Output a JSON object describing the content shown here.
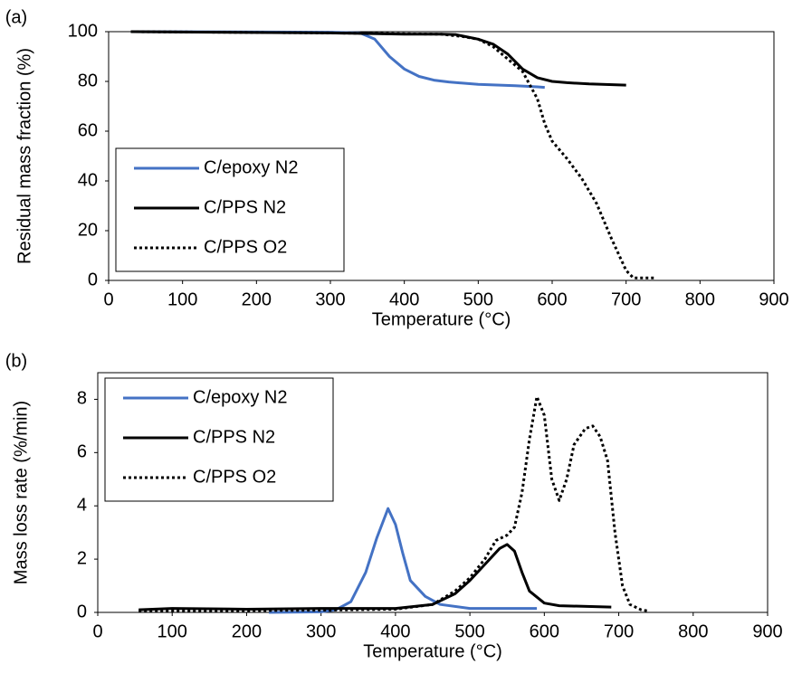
{
  "chart_data": [
    {
      "type": "line",
      "label": "(a)",
      "y_label": "Residual mass fraction (%)",
      "x_label": "Temperature (°C)",
      "xlim": [
        0,
        900
      ],
      "xticks": [
        0,
        100,
        200,
        300,
        400,
        500,
        600,
        700,
        800,
        900
      ],
      "ylim": [
        0,
        100
      ],
      "yticks": [
        0,
        20,
        40,
        60,
        80,
        100
      ],
      "grid": false,
      "legend": "lower left",
      "series": [
        {
          "name": "C/epoxy N2",
          "color": "#4472c4",
          "line_style": "solid",
          "x": [
            30,
            300,
            340,
            360,
            380,
            400,
            420,
            440,
            460,
            500,
            550,
            580,
            590
          ],
          "values": [
            100,
            99.8,
            99.5,
            97,
            90,
            85,
            82,
            80.5,
            79.8,
            78.8,
            78.3,
            77.8,
            77.6
          ]
        },
        {
          "name": "C/PPS N2",
          "color": "#000000",
          "line_style": "solid",
          "x": [
            30,
            300,
            400,
            450,
            470,
            500,
            520,
            540,
            560,
            580,
            600,
            620,
            650,
            700
          ],
          "values": [
            100,
            99.5,
            99,
            99,
            98.8,
            97,
            95,
            91,
            85,
            81.5,
            80,
            79.5,
            79,
            78.5
          ]
        },
        {
          "name": "C/PPS O2",
          "color": "#000000",
          "line_style": "dotted",
          "x": [
            30,
            300,
            450,
            480,
            500,
            520,
            540,
            560,
            580,
            590,
            600,
            620,
            640,
            660,
            680,
            700,
            710,
            740
          ],
          "values": [
            100,
            99.5,
            99,
            98,
            97,
            94,
            89,
            84,
            73,
            63,
            56,
            49,
            41,
            31,
            17,
            4,
            1,
            1
          ]
        }
      ]
    },
    {
      "type": "line",
      "label": "(b)",
      "y_label": "Mass loss rate (%/min)",
      "x_label": "Temperature (°C)",
      "xlim": [
        0,
        900
      ],
      "xticks": [
        0,
        100,
        200,
        300,
        400,
        500,
        600,
        700,
        800,
        900
      ],
      "ylim": [
        0,
        9
      ],
      "yticks": [
        0,
        2,
        4,
        6,
        8
      ],
      "grid": false,
      "legend": "upper left",
      "series": [
        {
          "name": "C/epoxy N2",
          "color": "#4472c4",
          "line_style": "solid",
          "x": [
            230,
            300,
            320,
            340,
            360,
            375,
            390,
            400,
            410,
            420,
            440,
            460,
            500,
            590
          ],
          "values": [
            0,
            0.02,
            0.1,
            0.4,
            1.5,
            2.8,
            3.9,
            3.3,
            2.2,
            1.2,
            0.6,
            0.3,
            0.15,
            0.15
          ]
        },
        {
          "name": "C/PPS N2",
          "color": "#000000",
          "line_style": "solid",
          "x": [
            55,
            100,
            200,
            300,
            400,
            450,
            480,
            500,
            520,
            540,
            550,
            560,
            570,
            580,
            600,
            620,
            690
          ],
          "values": [
            0.1,
            0.15,
            0.12,
            0.15,
            0.15,
            0.3,
            0.7,
            1.2,
            1.8,
            2.4,
            2.55,
            2.3,
            1.5,
            0.8,
            0.35,
            0.25,
            0.2
          ]
        },
        {
          "name": "C/PPS O2",
          "color": "#000000",
          "line_style": "dotted",
          "x": [
            55,
            300,
            400,
            450,
            480,
            500,
            520,
            535,
            550,
            560,
            570,
            580,
            590,
            600,
            610,
            620,
            630,
            640,
            655,
            665,
            675,
            685,
            695,
            705,
            715,
            730,
            740
          ],
          "values": [
            0.05,
            0.08,
            0.12,
            0.3,
            0.8,
            1.3,
            2.0,
            2.7,
            2.9,
            3.2,
            4.5,
            6.5,
            8.1,
            7.4,
            5.0,
            4.2,
            5.0,
            6.3,
            6.9,
            7.0,
            6.6,
            5.7,
            3.0,
            1.0,
            0.3,
            0.1,
            0.05
          ]
        }
      ]
    }
  ]
}
